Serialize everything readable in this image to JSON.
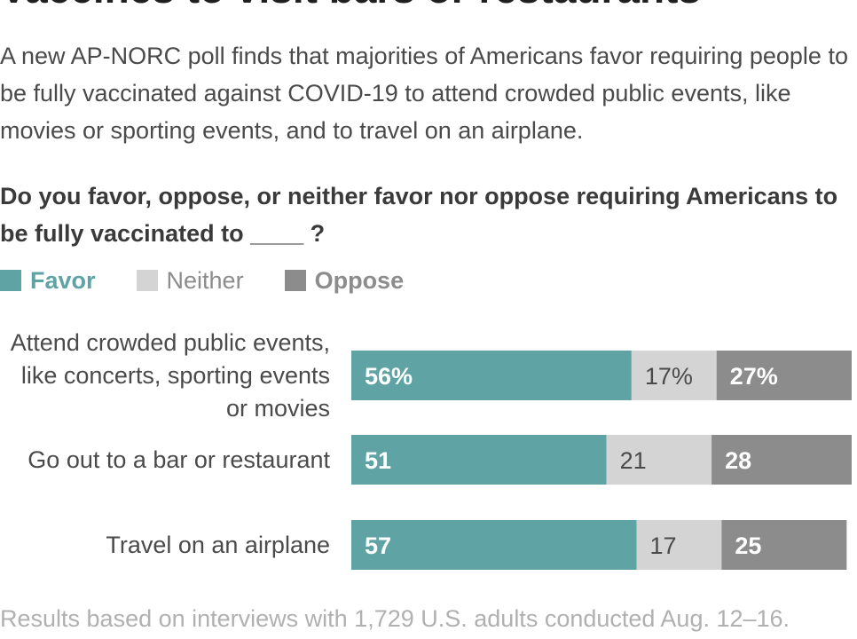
{
  "headline": "Vaccines to visit bars or restaurants",
  "intro": "A new AP-NORC poll finds that majorities of Americans favor requiring people to be fully vaccinated against COVID-19 to attend crowded public events, like movies or sporting events, and to travel on an airplane.",
  "question": "Do you favor, oppose, or neither favor nor oppose requiring Americans to be fully vaccinated to ____ ?",
  "footnote": "Results based on interviews with 1,729 U.S. adults conducted Aug. 12–16.",
  "colors": {
    "favor": "#5fa3a4",
    "neither": "#d4d4d4",
    "oppose": "#8c8c8c",
    "label_text": "#4a4a4a",
    "footnote": "#b0b0b0"
  },
  "chart_data": {
    "type": "bar",
    "orientation": "horizontal",
    "stacked": true,
    "categories": [
      "Attend crowded public events, like concerts, sporting events or movies",
      "Go out to a bar or restaurant",
      "Travel on an airplane"
    ],
    "category_lines": [
      [
        "Attend crowded public events,",
        "like concerts, sporting events",
        "or movies"
      ],
      [
        "Go out to a bar or restaurant"
      ],
      [
        "Travel on an airplane"
      ]
    ],
    "series": [
      {
        "name": "Favor",
        "key": "favor",
        "values": [
          56,
          51,
          57
        ],
        "labels": [
          "56%",
          "51",
          "57"
        ]
      },
      {
        "name": "Neither",
        "key": "neither",
        "values": [
          17,
          21,
          17
        ],
        "labels": [
          "17%",
          "21",
          "17"
        ]
      },
      {
        "name": "Oppose",
        "key": "oppose",
        "values": [
          27,
          28,
          25
        ],
        "labels": [
          "27%",
          "28",
          "25"
        ]
      }
    ],
    "xlim": [
      0,
      100
    ],
    "legend_position": "top-left",
    "grid": false
  }
}
